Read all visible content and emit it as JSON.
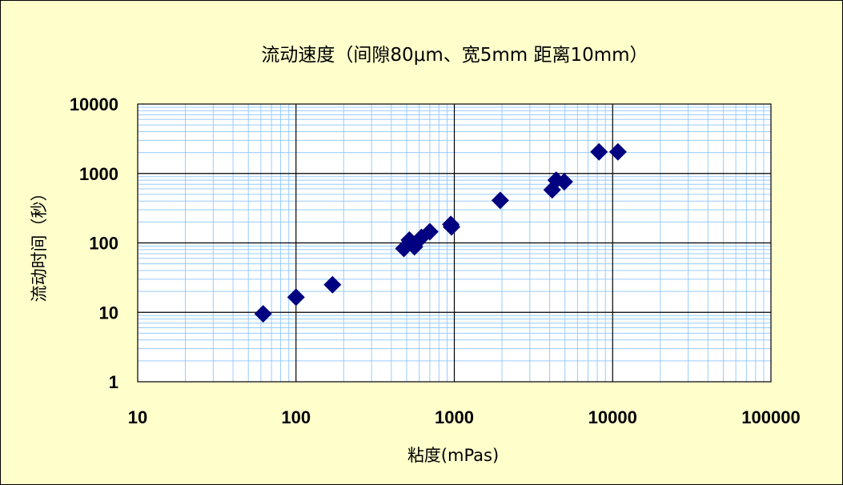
{
  "chart_data": {
    "type": "scatter",
    "title": "流动速度（间隙80μm、宽5mm 距离10mm）",
    "xlabel": "粘度(mPas)",
    "ylabel": "流动时间（秒）",
    "x_scale": "log",
    "y_scale": "log",
    "xlim": [
      10,
      100000
    ],
    "ylim": [
      1,
      10000
    ],
    "x_ticks": [
      "10",
      "100",
      "1000",
      "10000",
      "100000"
    ],
    "y_ticks": [
      "1",
      "10",
      "100",
      "1000",
      "10000"
    ],
    "grid": true,
    "legend": "none",
    "marker": "diamond",
    "colors": {
      "marker": "#000080",
      "plot_background": "#ffffff",
      "chart_background": "#ffffcc",
      "minor_grid": "#99ccff",
      "major_grid": "#000000"
    },
    "series": [
      {
        "points": [
          [
            62,
            9.5
          ],
          [
            100,
            16.5
          ],
          [
            170,
            25
          ],
          [
            480,
            83
          ],
          [
            520,
            110
          ],
          [
            560,
            88
          ],
          [
            620,
            120
          ],
          [
            700,
            145
          ],
          [
            950,
            185
          ],
          [
            960,
            170
          ],
          [
            1950,
            410
          ],
          [
            4150,
            580
          ],
          [
            4400,
            800
          ],
          [
            4950,
            760
          ],
          [
            8200,
            2050
          ],
          [
            10800,
            2050
          ]
        ]
      }
    ]
  }
}
